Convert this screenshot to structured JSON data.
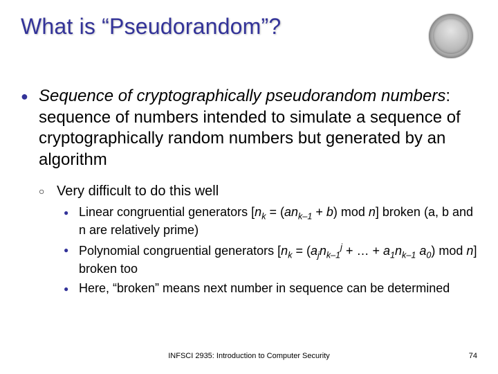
{
  "title": "What is “Pseudorandom”?",
  "main": {
    "emph": "Sequence of cryptographically pseudorandom numbers",
    "rest": ": sequence of numbers intended to simulate a sequence of cryptographically random numbers but generated by an algorithm"
  },
  "sub": "Very difficult to do this well",
  "items": {
    "a_pre": "Linear congruential generators [",
    "a_post": "] broken (a, b and n are relatively prime)",
    "b_pre": "Polynomial congruential generators [",
    "b_post": "] broken too",
    "c": "Here, “broken” means next number in sequence can be determined"
  },
  "math": {
    "n": "n",
    "k": "k",
    "km1": "k–1",
    "a": "a",
    "b": "b",
    "j": "j",
    "eq": " = (",
    "plus": " + ",
    "close_mod": ") mod ",
    "a1": "a",
    "one": "1",
    "a0": "a",
    "zero": "0",
    "dots": " + … + "
  },
  "footer": "INFSCI 2935: Introduction to Computer Security",
  "page": "74",
  "bullets": {
    "l1": "●",
    "l2": "○",
    "l3": "●"
  }
}
